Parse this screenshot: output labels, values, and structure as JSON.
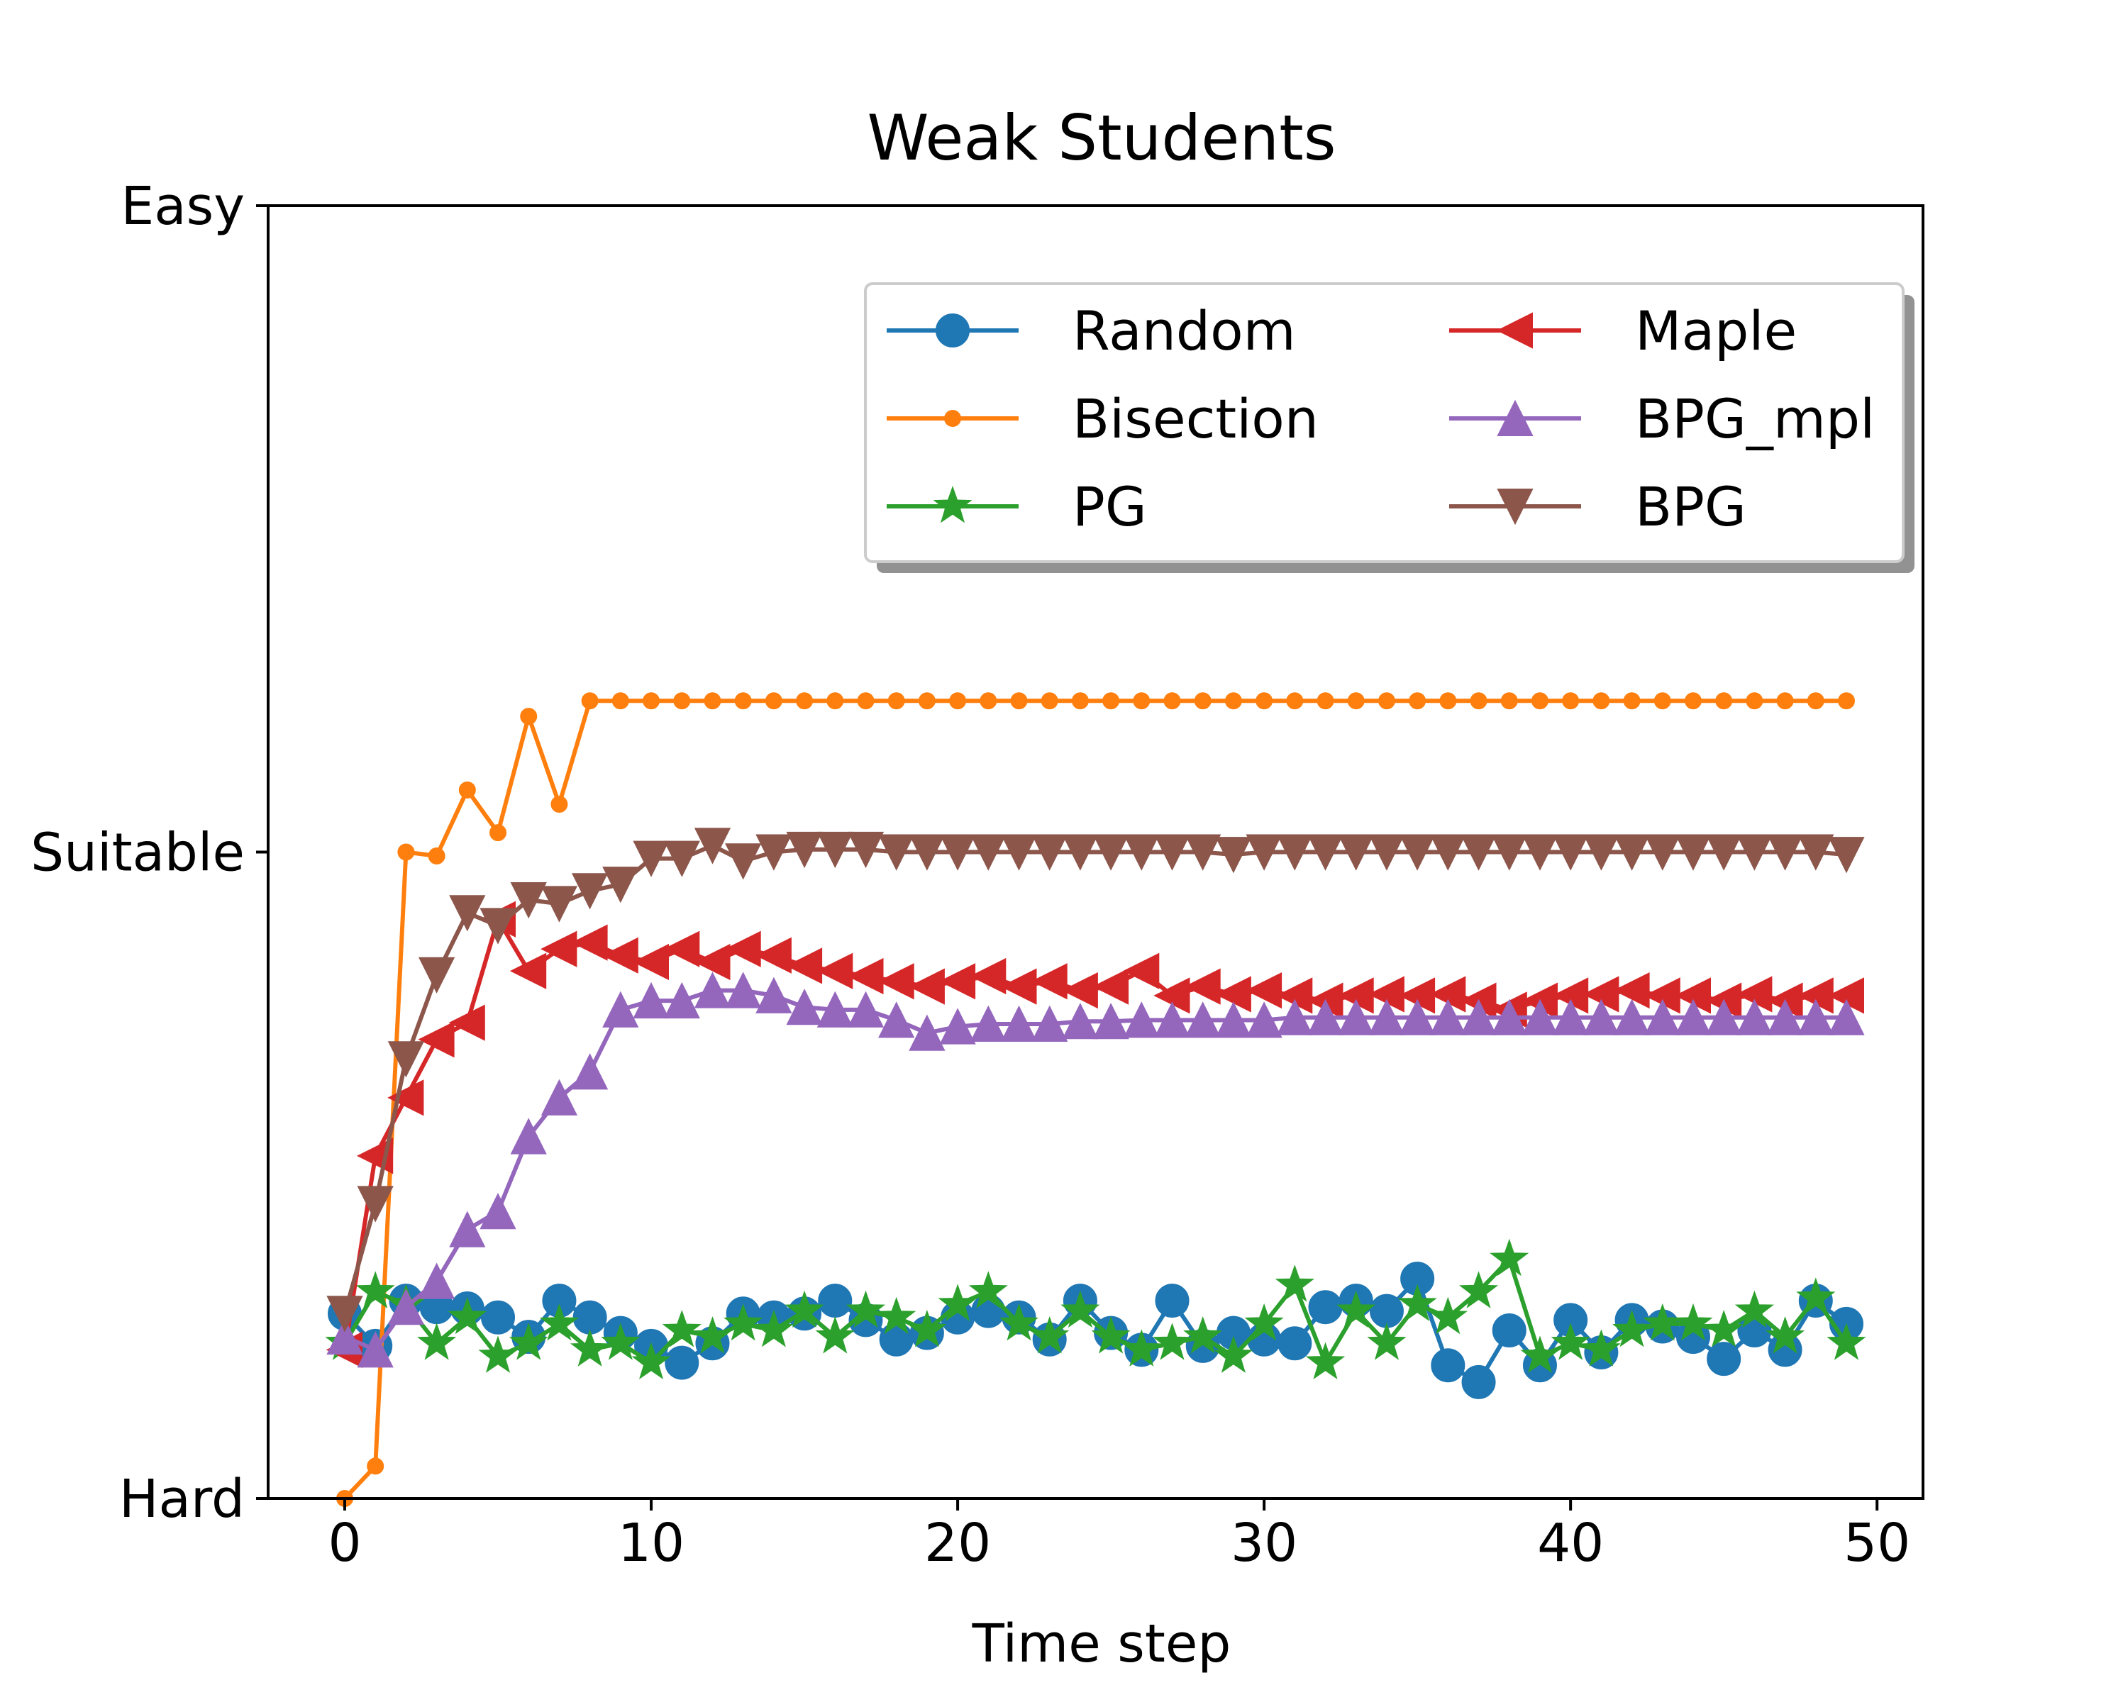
{
  "chart_data": {
    "type": "line",
    "title": "Weak Students",
    "xlabel": "Time step",
    "ylabel": "",
    "xlim": [
      -2.5,
      51.5
    ],
    "ylim": [
      0,
      1
    ],
    "xticks": [
      0,
      10,
      20,
      30,
      40,
      50
    ],
    "xtick_labels": [
      "0",
      "10",
      "20",
      "30",
      "40",
      "50"
    ],
    "yticks": [
      0,
      0.5,
      1
    ],
    "ytick_labels": [
      "Hard",
      "Suitable",
      "Easy"
    ],
    "grid": false,
    "legend": {
      "placement": "upper right",
      "columns": 2,
      "shadow": true
    },
    "x": [
      0,
      1,
      2,
      3,
      4,
      5,
      6,
      7,
      8,
      9,
      10,
      11,
      12,
      13,
      14,
      15,
      16,
      17,
      18,
      19,
      20,
      21,
      22,
      23,
      24,
      25,
      26,
      27,
      28,
      29,
      30,
      31,
      32,
      33,
      34,
      35,
      36,
      37,
      38,
      39,
      40,
      41,
      42,
      43,
      44,
      45,
      46,
      47,
      48,
      49
    ],
    "series": [
      {
        "name": "Random",
        "color": "#1f77b4",
        "marker": "circle",
        "values": [
          0.143,
          0.118,
          0.153,
          0.148,
          0.147,
          0.14,
          0.125,
          0.153,
          0.14,
          0.128,
          0.118,
          0.105,
          0.12,
          0.143,
          0.14,
          0.143,
          0.153,
          0.138,
          0.123,
          0.128,
          0.14,
          0.145,
          0.14,
          0.123,
          0.153,
          0.128,
          0.115,
          0.153,
          0.118,
          0.128,
          0.123,
          0.12,
          0.148,
          0.153,
          0.145,
          0.17,
          0.103,
          0.09,
          0.13,
          0.103,
          0.138,
          0.113,
          0.138,
          0.133,
          0.125,
          0.108,
          0.13,
          0.115,
          0.153,
          0.135
        ]
      },
      {
        "name": "Bisection",
        "color": "#ff7f0e",
        "marker": "point",
        "values": [
          0.0,
          0.025,
          0.5,
          0.497,
          0.548,
          0.515,
          0.605,
          0.537,
          0.617,
          0.617,
          0.617,
          0.617,
          0.617,
          0.617,
          0.617,
          0.617,
          0.617,
          0.617,
          0.617,
          0.617,
          0.617,
          0.617,
          0.617,
          0.617,
          0.617,
          0.617,
          0.617,
          0.617,
          0.617,
          0.617,
          0.617,
          0.617,
          0.617,
          0.617,
          0.617,
          0.617,
          0.617,
          0.617,
          0.617,
          0.617,
          0.617,
          0.617,
          0.617,
          0.617,
          0.617,
          0.617,
          0.617,
          0.617,
          0.617,
          0.617
        ]
      },
      {
        "name": "PG",
        "color": "#2ca02c",
        "marker": "star",
        "values": [
          0.12,
          0.16,
          0.15,
          0.12,
          0.14,
          0.11,
          0.12,
          0.135,
          0.115,
          0.12,
          0.105,
          0.13,
          0.125,
          0.135,
          0.13,
          0.145,
          0.125,
          0.145,
          0.14,
          0.13,
          0.15,
          0.16,
          0.135,
          0.125,
          0.145,
          0.125,
          0.115,
          0.12,
          0.125,
          0.11,
          0.135,
          0.165,
          0.105,
          0.145,
          0.12,
          0.15,
          0.14,
          0.16,
          0.185,
          0.11,
          0.12,
          0.115,
          0.13,
          0.135,
          0.135,
          0.13,
          0.145,
          0.125,
          0.155,
          0.12
        ]
      },
      {
        "name": "Maple",
        "color": "#d62728",
        "marker": "triangle-left",
        "values": [
          0.115,
          0.265,
          0.31,
          0.355,
          0.368,
          0.448,
          0.408,
          0.425,
          0.43,
          0.42,
          0.415,
          0.425,
          0.415,
          0.425,
          0.42,
          0.412,
          0.408,
          0.404,
          0.4,
          0.396,
          0.4,
          0.404,
          0.396,
          0.4,
          0.393,
          0.396,
          0.408,
          0.389,
          0.396,
          0.39,
          0.393,
          0.389,
          0.385,
          0.389,
          0.39,
          0.389,
          0.39,
          0.385,
          0.378,
          0.385,
          0.389,
          0.39,
          0.393,
          0.389,
          0.389,
          0.385,
          0.39,
          0.385,
          0.389,
          0.389
        ]
      },
      {
        "name": "BPG_mpl",
        "color": "#9467bd",
        "marker": "triangle-up",
        "values": [
          0.125,
          0.115,
          0.148,
          0.168,
          0.208,
          0.222,
          0.28,
          0.31,
          0.33,
          0.378,
          0.385,
          0.385,
          0.393,
          0.393,
          0.389,
          0.38,
          0.378,
          0.378,
          0.37,
          0.36,
          0.365,
          0.367,
          0.367,
          0.367,
          0.369,
          0.369,
          0.37,
          0.37,
          0.37,
          0.37,
          0.37,
          0.372,
          0.372,
          0.372,
          0.372,
          0.372,
          0.372,
          0.372,
          0.372,
          0.372,
          0.372,
          0.372,
          0.372,
          0.372,
          0.372,
          0.372,
          0.372,
          0.372,
          0.372,
          0.372
        ]
      },
      {
        "name": "BPG",
        "color": "#8c564b",
        "marker": "triangle-down",
        "values": [
          0.143,
          0.228,
          0.34,
          0.405,
          0.453,
          0.443,
          0.463,
          0.46,
          0.47,
          0.475,
          0.495,
          0.495,
          0.505,
          0.493,
          0.5,
          0.502,
          0.502,
          0.502,
          0.5,
          0.5,
          0.5,
          0.5,
          0.5,
          0.5,
          0.5,
          0.5,
          0.5,
          0.5,
          0.5,
          0.498,
          0.5,
          0.5,
          0.5,
          0.5,
          0.5,
          0.5,
          0.5,
          0.5,
          0.5,
          0.5,
          0.5,
          0.5,
          0.5,
          0.5,
          0.5,
          0.5,
          0.5,
          0.5,
          0.5,
          0.498
        ]
      }
    ]
  }
}
